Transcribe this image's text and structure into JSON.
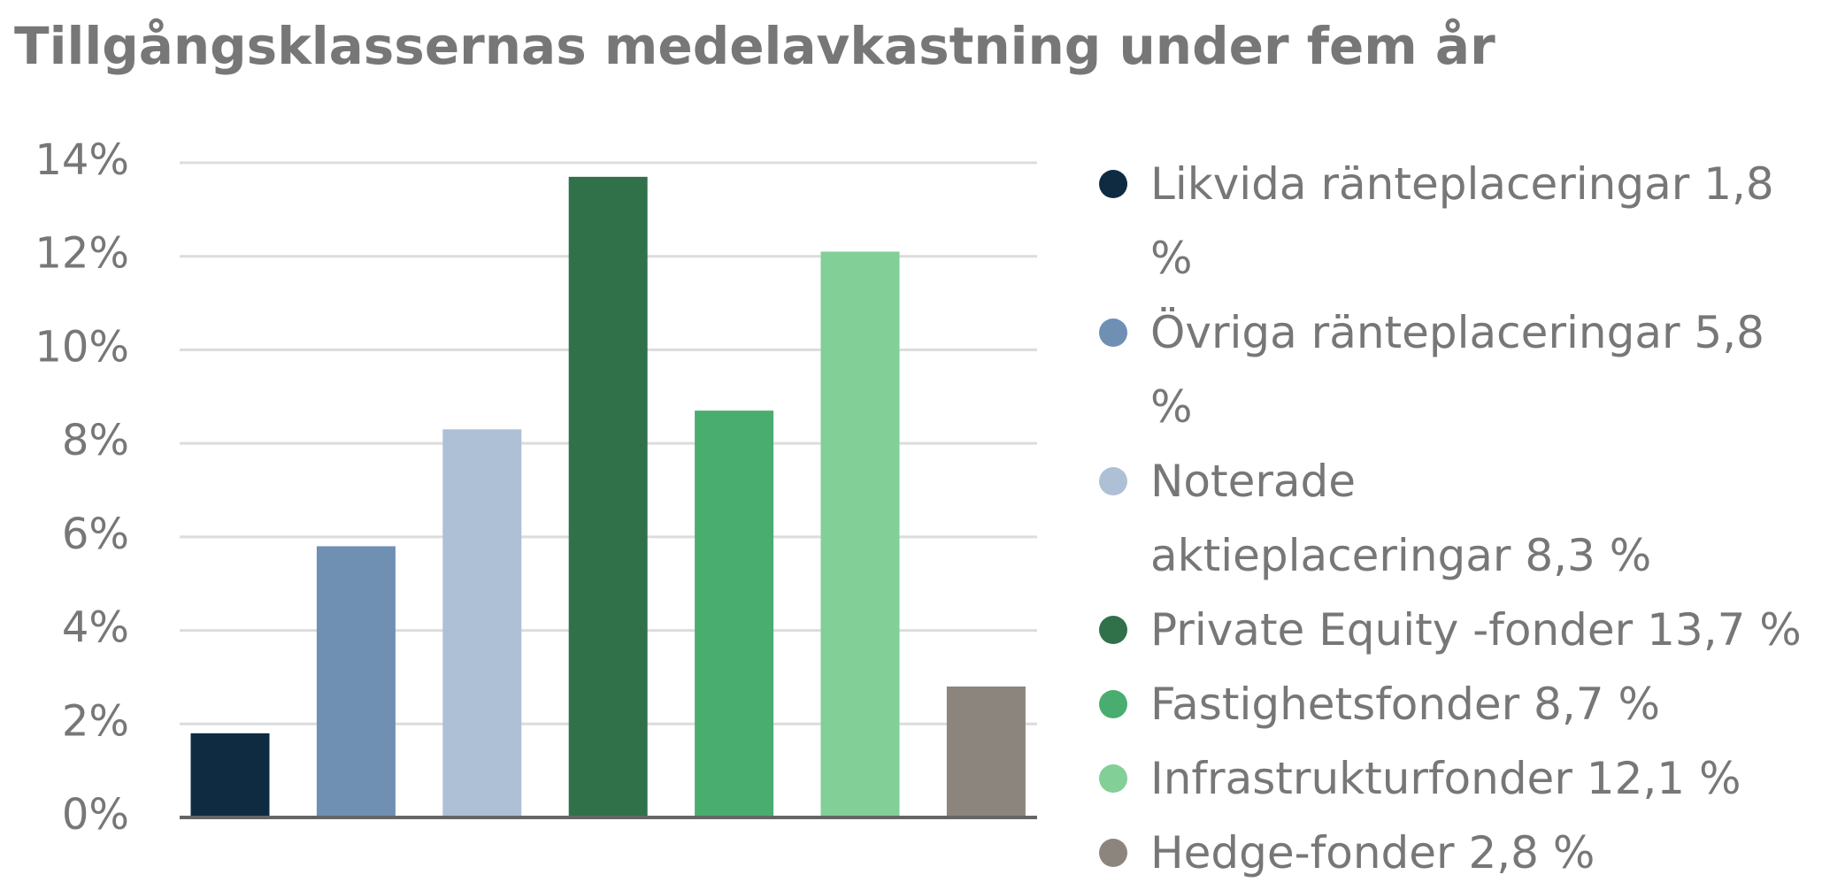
{
  "chart_data": {
    "type": "bar",
    "title": "Tillgångsklassernas medelavkastning under fem år",
    "categories": [
      "Likvida ränteplaceringar 1,8 %",
      "Övriga ränteplaceringar 5,8 %",
      "Noterade\naktieplaceringar 8,3 %",
      "Private Equity -fonder 13,7 %",
      "Fastighetsfonder 8,7 %",
      "Infrastrukturfonder 12,1 %",
      "Hedge-fonder 2,8 %"
    ],
    "values": [
      1.8,
      5.8,
      8.3,
      13.7,
      8.7,
      12.1,
      2.8
    ],
    "colors": [
      "#0f2b42",
      "#6f8fb3",
      "#adc0d6",
      "#30714a",
      "#4aad70",
      "#82cf98",
      "#8c857e"
    ],
    "ylim": [
      0,
      14
    ],
    "yticks": [
      {
        "value": 0,
        "label": "0%"
      },
      {
        "value": 2,
        "label": "2%"
      },
      {
        "value": 4,
        "label": "4%"
      },
      {
        "value": 6,
        "label": "6%"
      },
      {
        "value": 8,
        "label": "8%"
      },
      {
        "value": 10,
        "label": "10%"
      },
      {
        "value": 12,
        "label": "12%"
      },
      {
        "value": 14,
        "label": "14%"
      }
    ],
    "grid": true
  }
}
